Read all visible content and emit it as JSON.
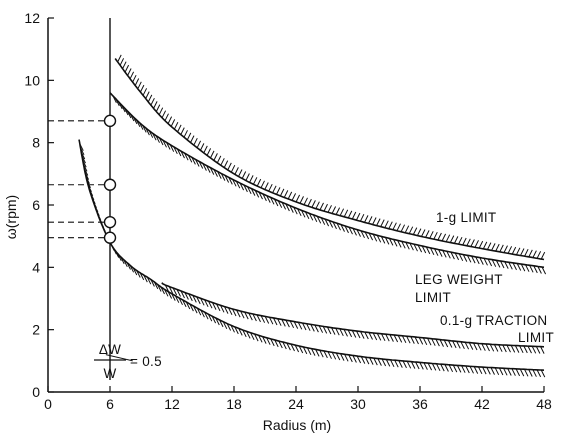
{
  "chart_data": {
    "type": "line",
    "xlabel": "Radius (m)",
    "ylabel": "ω(rpm)",
    "xlim": [
      0,
      48
    ],
    "ylim": [
      0,
      12
    ],
    "x_ticks": [
      "0",
      "6",
      "12",
      "18",
      "24",
      "30",
      "36",
      "42",
      "48"
    ],
    "y_ticks": [
      "0",
      "2",
      "4",
      "6",
      "8",
      "10",
      "12"
    ],
    "grid": false,
    "series": [
      {
        "name": "1-g LIMIT",
        "x": [
          6.5,
          9,
          12,
          18,
          24,
          30,
          36,
          42,
          48
        ],
        "y": [
          10.7,
          9.6,
          8.5,
          7.0,
          6.1,
          5.5,
          5.0,
          4.6,
          4.25
        ],
        "hatch": "above"
      },
      {
        "name": "LEG WEIGHT LIMIT",
        "x": [
          6.0,
          9,
          12,
          18,
          24,
          30,
          36,
          42,
          48
        ],
        "y": [
          9.6,
          8.6,
          7.9,
          6.8,
          5.9,
          5.2,
          4.7,
          4.3,
          4.0
        ],
        "hatch": "below"
      },
      {
        "name": "0.1-g TRACTION LIMIT",
        "x": [
          11,
          12,
          18,
          24,
          30,
          36,
          42,
          48
        ],
        "y": [
          3.5,
          3.35,
          2.65,
          2.25,
          1.95,
          1.75,
          1.55,
          1.45
        ],
        "hatch": "below"
      },
      {
        "name": "ΔW/W = 0.5",
        "x": [
          3,
          4,
          6,
          8,
          10,
          12,
          18,
          24,
          30,
          36,
          42,
          48
        ],
        "y": [
          8.1,
          6.5,
          4.8,
          4.05,
          3.6,
          3.15,
          2.1,
          1.5,
          1.15,
          0.95,
          0.8,
          0.7
        ],
        "hatch": "below"
      }
    ],
    "vertical_line": {
      "x": 6
    },
    "markers": [
      {
        "x": 6,
        "y": 8.7
      },
      {
        "x": 6,
        "y": 6.65
      },
      {
        "x": 6,
        "y": 5.45
      },
      {
        "x": 6,
        "y": 4.95
      }
    ],
    "annotations": {
      "one_g": "1-g LIMIT",
      "leg_weight_line1": "LEG WEIGHT",
      "leg_weight_line2": "LIMIT",
      "traction_line1": "0.1-g TRACTION",
      "traction_line2": "LIMIT",
      "dw_numerator": "ΔW",
      "dw_denominator": "W",
      "dw_value": "= 0.5"
    }
  }
}
